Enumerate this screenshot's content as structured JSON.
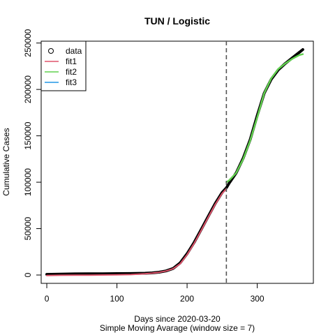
{
  "chart_data": {
    "type": "line",
    "title": "TUN / Logistic",
    "xlabel": "Days since 2020-03-20",
    "xlabel2": "Simple Moving Avarage (window size = 7)",
    "ylabel": "Cumulative Cases",
    "xlim": [
      -8,
      380
    ],
    "ylim": [
      -9000,
      252000
    ],
    "x_ticks": [
      0,
      100,
      200,
      300
    ],
    "y_ticks": [
      0,
      50000,
      100000,
      150000,
      200000,
      250000
    ],
    "vline_x": 256,
    "grid": false,
    "legend_position": "top-left",
    "legend": [
      {
        "label": "data",
        "symbol": "circle",
        "color": "#000000"
      },
      {
        "label": "fit1",
        "symbol": "line",
        "color": "#DF536B"
      },
      {
        "label": "fit2",
        "symbol": "line",
        "color": "#61D04F"
      },
      {
        "label": "fit3",
        "symbol": "line",
        "color": "#2297E6"
      }
    ],
    "series": [
      {
        "name": "data",
        "color": "#000000",
        "x": [
          0,
          20,
          40,
          60,
          80,
          100,
          120,
          140,
          150,
          160,
          170,
          180,
          190,
          200,
          210,
          220,
          230,
          240,
          250,
          256,
          260,
          270,
          280,
          290,
          300,
          310,
          320,
          330,
          340,
          350,
          360,
          365
        ],
        "y": [
          700,
          1000,
          1200,
          1300,
          1400,
          1500,
          1600,
          1900,
          2300,
          3000,
          4400,
          7000,
          13000,
          23000,
          35000,
          49000,
          63000,
          77000,
          89000,
          94000,
          99000,
          110000,
          126000,
          146000,
          172000,
          196000,
          211000,
          221000,
          228000,
          234000,
          240000,
          243000
        ]
      },
      {
        "name": "fit1",
        "color": "#DF536B",
        "x": [
          0,
          20,
          40,
          60,
          80,
          100,
          120,
          140,
          150,
          160,
          170,
          180,
          190,
          200,
          210,
          220,
          230,
          240,
          250,
          256
        ],
        "y": [
          -500,
          -300,
          -200,
          -100,
          0,
          200,
          500,
          1300,
          2000,
          2900,
          4300,
          6700,
          12000,
          22000,
          34000,
          48000,
          62000,
          76000,
          88000,
          93000
        ]
      },
      {
        "name": "fit2",
        "color": "#61D04F",
        "x": [
          256,
          260,
          270,
          280,
          290,
          300,
          310,
          320,
          330,
          340,
          350,
          360,
          365
        ],
        "y": [
          100000,
          102000,
          110000,
          125000,
          145000,
          170000,
          196000,
          212000,
          222000,
          228000,
          233000,
          237000,
          238000
        ]
      },
      {
        "name": "fit3",
        "color": "#2297E6",
        "x": [],
        "y": []
      }
    ]
  }
}
